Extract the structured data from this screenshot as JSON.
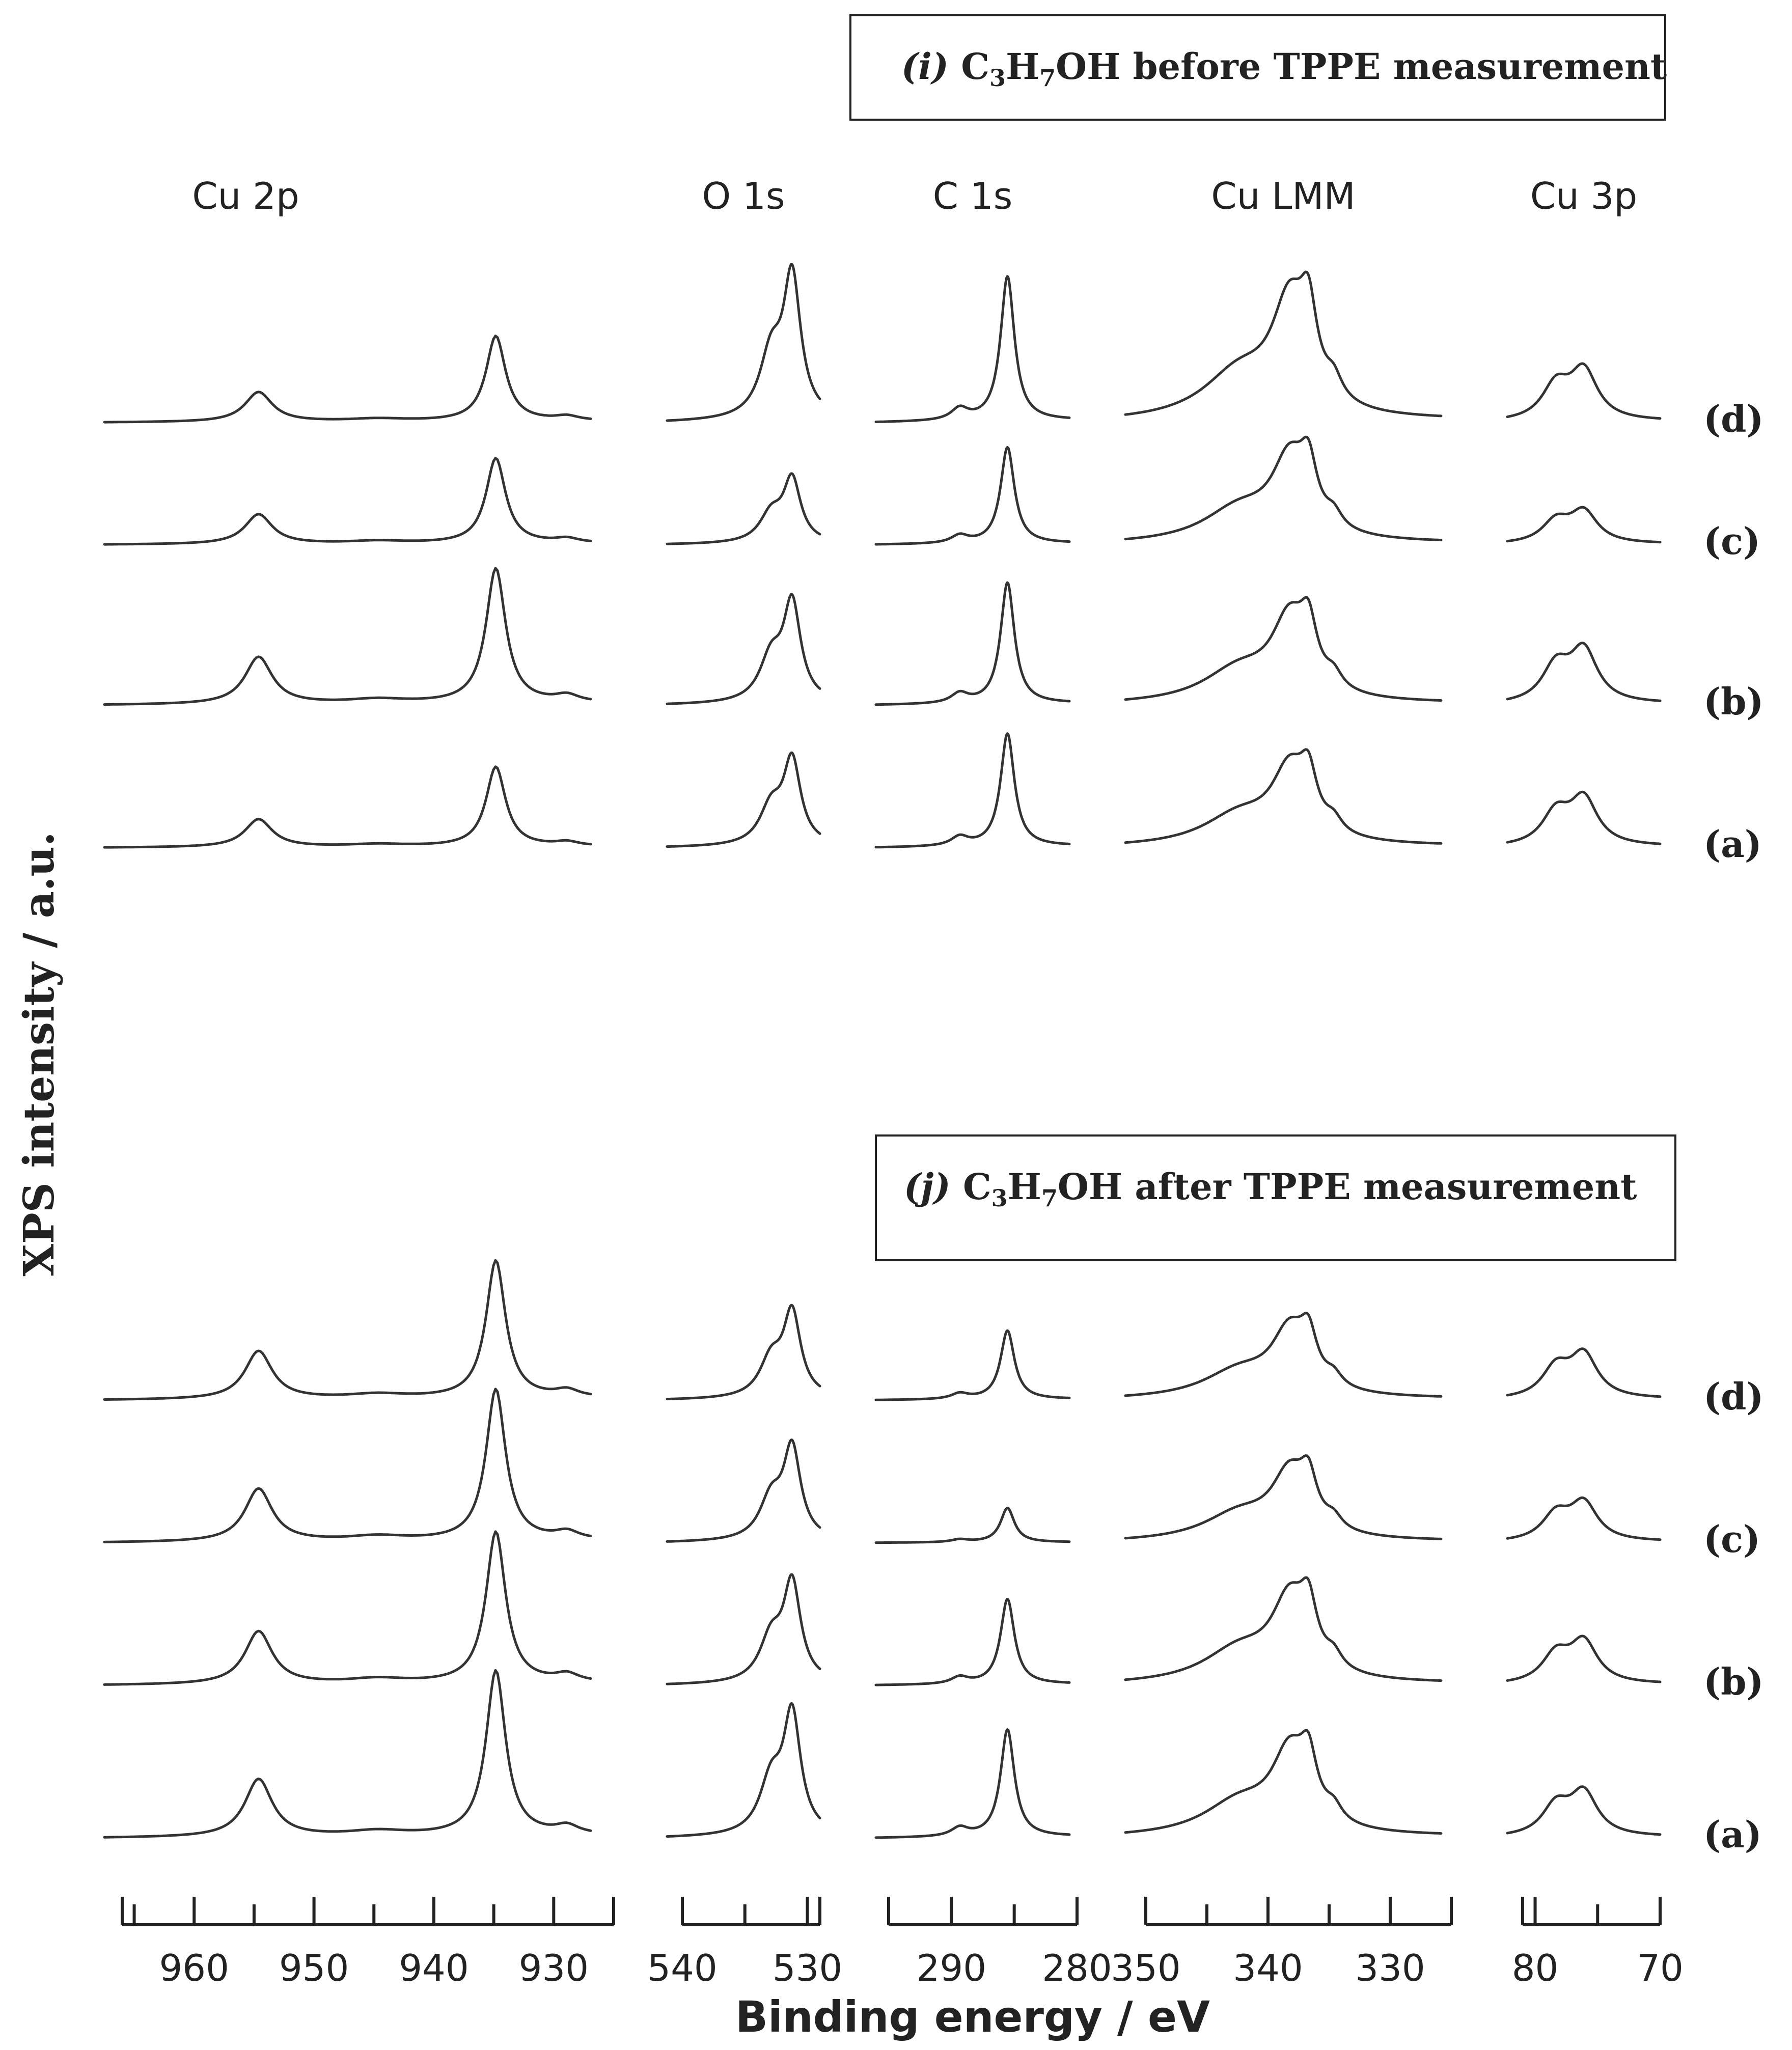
{
  "chart_data": {
    "type": "line",
    "ylabel": "XPS intensity / a.u.",
    "xlabel": "Binding energy / eV",
    "panel_titles": [
      {
        "id": "i",
        "italic": "(i)",
        "pre": " C",
        "sub1": "3",
        "mid": "H",
        "sub2": "7",
        "post": "OH before TPPE measurement"
      },
      {
        "id": "j",
        "italic": "(j)",
        "pre": " C",
        "sub1": "3",
        "mid": "H",
        "sub2": "7",
        "post": "OH after TPPE measurement"
      }
    ],
    "regions": [
      {
        "name": "Cu 2p",
        "xrange": [
          966,
          925
        ],
        "ticks": [
          960,
          950,
          940,
          930
        ],
        "peaks": [
          [
            933,
            1.0,
            1.0
          ],
          [
            953,
            0.35,
            1.4
          ],
          [
            943,
            0.03,
            3.0
          ],
          [
            927,
            0.05,
            1.2
          ]
        ]
      },
      {
        "name": "O 1s",
        "xrange": [
          540,
          529
        ],
        "ticks": [
          540,
          530
        ],
        "peaks": [
          [
            531,
            1.0,
            0.75
          ],
          [
            532.5,
            0.45,
            1.0
          ]
        ]
      },
      {
        "name": "C 1s",
        "xrange": [
          295,
          280
        ],
        "ticks": [
          290,
          280
        ],
        "peaks": [
          [
            284.8,
            1.0,
            0.65
          ],
          [
            288.5,
            0.08,
            0.8
          ]
        ]
      },
      {
        "name": "Cu LMM",
        "xrange": [
          350,
          325
        ],
        "ticks": [
          350,
          340,
          330
        ],
        "peaks": [
          [
            337,
            0.8,
            1.7
          ],
          [
            335.5,
            0.55,
            0.8
          ],
          [
            333.5,
            0.15,
            0.8
          ],
          [
            341,
            0.35,
            3.5
          ]
        ]
      },
      {
        "name": "Cu 3p",
        "xrange": [
          81,
          70
        ],
        "ticks": [
          80,
          70
        ],
        "peaks": [
          [
            75.5,
            0.65,
            1.2
          ],
          [
            77.5,
            0.45,
            1.2
          ]
        ]
      }
    ],
    "series": [
      {
        "panel": "i",
        "label": "(d)",
        "scale": [
          0.62,
          1.0,
          1.05,
          0.95,
          0.55
        ]
      },
      {
        "panel": "i",
        "label": "(c)",
        "scale": [
          0.62,
          0.45,
          0.7,
          0.68,
          0.35
        ]
      },
      {
        "panel": "i",
        "label": "(b)",
        "scale": [
          0.98,
          0.7,
          0.88,
          0.68,
          0.58
        ]
      },
      {
        "panel": "i",
        "label": "(a)",
        "scale": [
          0.58,
          0.6,
          0.82,
          0.62,
          0.52
        ]
      },
      {
        "panel": "j",
        "label": "(d)",
        "scale": [
          1.0,
          0.6,
          0.5,
          0.55,
          0.48
        ]
      },
      {
        "panel": "j",
        "label": "(c)",
        "scale": [
          1.1,
          0.65,
          0.25,
          0.55,
          0.42
        ]
      },
      {
        "panel": "j",
        "label": "(b)",
        "scale": [
          1.1,
          0.7,
          0.62,
          0.68,
          0.46
        ]
      },
      {
        "panel": "j",
        "label": "(a)",
        "scale": [
          1.2,
          0.85,
          0.78,
          0.68,
          0.48
        ]
      }
    ]
  }
}
